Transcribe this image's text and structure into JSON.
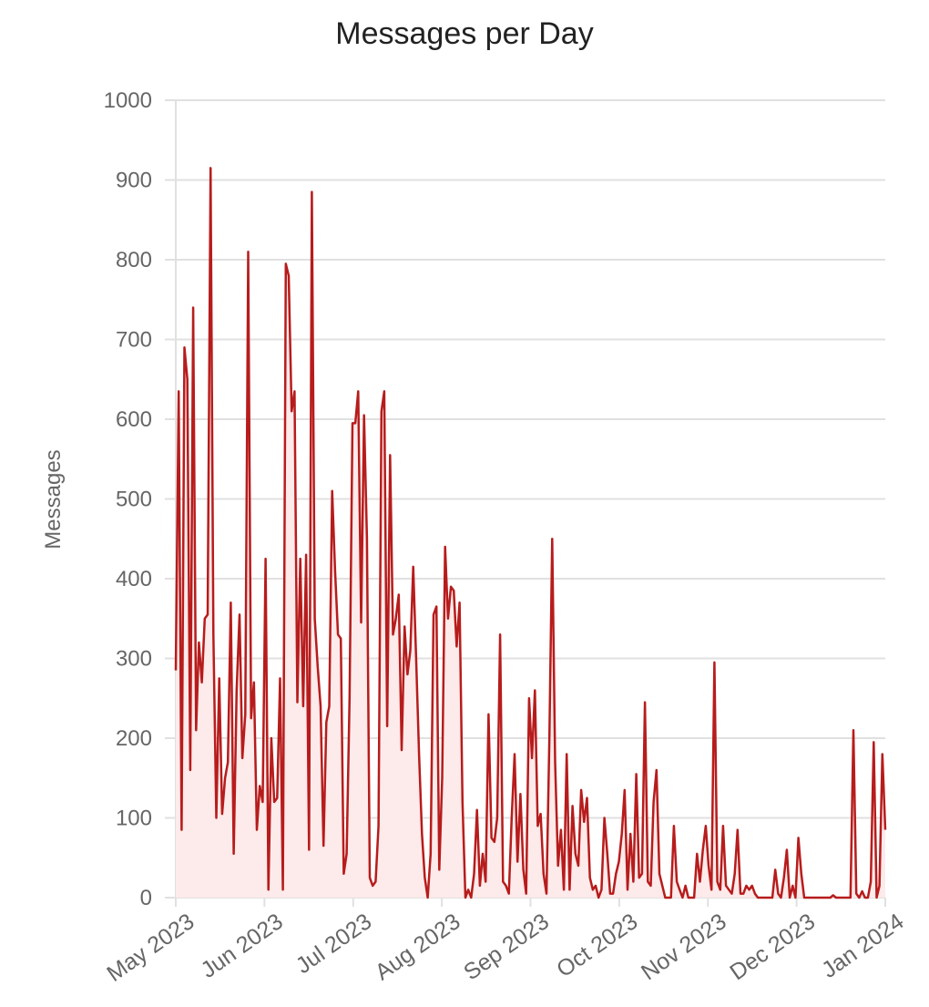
{
  "chart_data": {
    "type": "area",
    "title": "Messages per Day",
    "y_label": "Messages",
    "xticks": [
      "May 2023",
      "Jun 2023",
      "Jul 2023",
      "Aug 2023",
      "Sep 2023",
      "Oct 2023",
      "Nov 2023",
      "Dec 2023",
      "Jan 2024"
    ],
    "ylim": [
      0,
      1000
    ],
    "yticks": [
      0,
      100,
      200,
      300,
      400,
      500,
      600,
      700,
      800,
      900,
      1000
    ],
    "grid": true,
    "color": "#b71c1c",
    "fill": "#fdeaea",
    "values": [
      285,
      635,
      85,
      690,
      650,
      160,
      740,
      210,
      320,
      270,
      350,
      355,
      915,
      330,
      100,
      275,
      105,
      150,
      170,
      370,
      55,
      260,
      355,
      175,
      230,
      810,
      225,
      270,
      85,
      140,
      120,
      425,
      10,
      200,
      120,
      125,
      275,
      10,
      795,
      780,
      610,
      635,
      245,
      425,
      240,
      430,
      60,
      885,
      350,
      290,
      240,
      65,
      220,
      240,
      510,
      410,
      330,
      325,
      30,
      55,
      250,
      595,
      595,
      635,
      345,
      605,
      450,
      25,
      15,
      20,
      90,
      610,
      635,
      215,
      555,
      330,
      350,
      380,
      185,
      340,
      280,
      310,
      415,
      300,
      180,
      80,
      25,
      0,
      55,
      355,
      365,
      35,
      150,
      440,
      350,
      390,
      385,
      315,
      370,
      120,
      0,
      10,
      0,
      30,
      110,
      15,
      55,
      20,
      230,
      75,
      70,
      100,
      330,
      20,
      15,
      5,
      100,
      180,
      45,
      130,
      35,
      5,
      250,
      175,
      260,
      90,
      105,
      30,
      5,
      200,
      450,
      170,
      40,
      85,
      10,
      180,
      10,
      115,
      55,
      40,
      135,
      95,
      125,
      25,
      10,
      15,
      0,
      10,
      100,
      55,
      5,
      5,
      30,
      45,
      80,
      135,
      10,
      80,
      20,
      155,
      25,
      30,
      245,
      20,
      15,
      120,
      160,
      30,
      15,
      0,
      0,
      0,
      90,
      20,
      10,
      0,
      15,
      0,
      0,
      0,
      55,
      20,
      60,
      90,
      40,
      10,
      295,
      20,
      10,
      90,
      15,
      10,
      5,
      30,
      85,
      5,
      5,
      15,
      10,
      15,
      5,
      0,
      0,
      0,
      0,
      0,
      0,
      35,
      5,
      0,
      25,
      60,
      0,
      15,
      0,
      75,
      30,
      0,
      0,
      0,
      0,
      0,
      0,
      0,
      0,
      0,
      0,
      3,
      0,
      0,
      0,
      0,
      0,
      0,
      210,
      5,
      0,
      8,
      0,
      0,
      20,
      195,
      0,
      15,
      180,
      85
    ]
  }
}
